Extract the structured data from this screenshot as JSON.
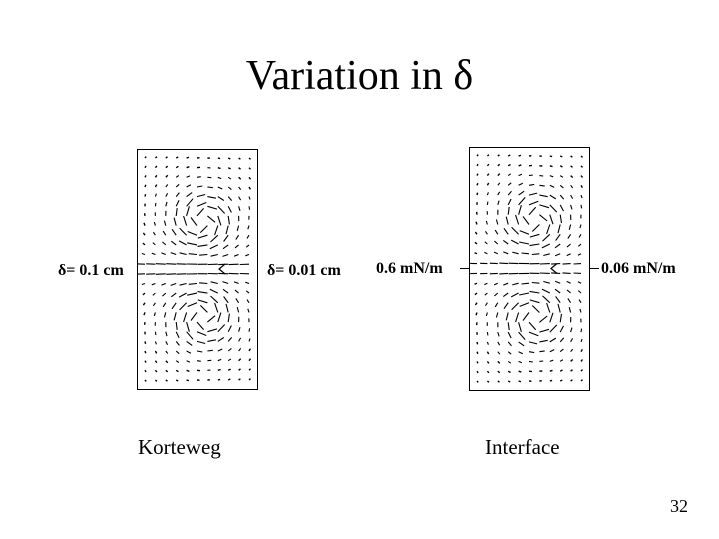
{
  "slide": {
    "title": "Variation in δ",
    "page_number": "32"
  },
  "panels": {
    "korteweg": {
      "left_label": "δ= 0.1 cm",
      "right_label": "δ= 0.01 cm",
      "caption": "Korteweg"
    },
    "interface": {
      "left_label": "0.6 mN/m",
      "right_label": "0.06 mN/m",
      "caption": "Interface"
    }
  }
}
